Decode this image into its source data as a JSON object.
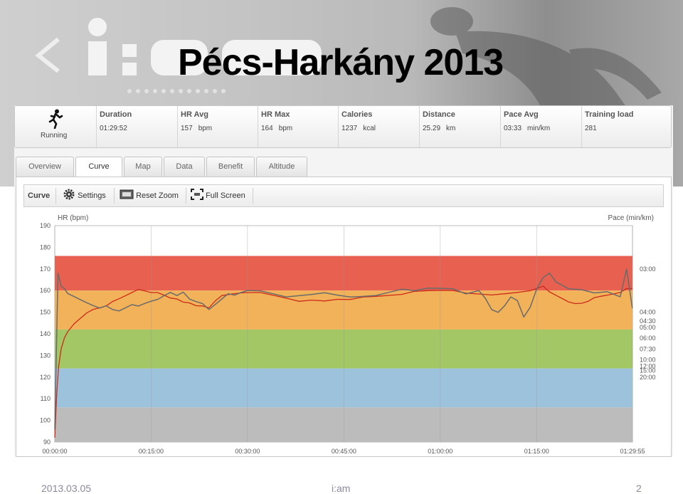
{
  "slide": {
    "title": "Pécs-Harkány 2013",
    "footer_date": "2013.03.05",
    "footer_brand": "i:am",
    "page_number": "2"
  },
  "stats": {
    "sport": "Running",
    "items": [
      {
        "label": "Duration",
        "value": "01:29:52",
        "unit": ""
      },
      {
        "label": "HR Avg",
        "value": "157",
        "unit": "bpm"
      },
      {
        "label": "HR Max",
        "value": "164",
        "unit": "bpm"
      },
      {
        "label": "Calories",
        "value": "1237",
        "unit": "kcal"
      },
      {
        "label": "Distance",
        "value": "25.29",
        "unit": "km"
      },
      {
        "label": "Pace Avg",
        "value": "03:33",
        "unit": "min/km"
      },
      {
        "label": "Training load",
        "value": "281",
        "unit": ""
      }
    ]
  },
  "tabs": [
    "Overview",
    "Curve",
    "Map",
    "Data",
    "Benefit",
    "Altitude"
  ],
  "active_tab": "Curve",
  "toolbar": {
    "curve": "Curve",
    "settings": "Settings",
    "reset_zoom": "Reset Zoom",
    "full_screen": "Full Screen"
  },
  "colors": {
    "zone_red": "#e8604f",
    "zone_orange": "#f2b25a",
    "zone_green": "#a3c764",
    "zone_blue": "#9dc3dc",
    "zone_gray": "#bcbcbc",
    "hr_line": "#cc2a1a",
    "pace_line": "#6b6b6b"
  },
  "chart_data": {
    "type": "line",
    "xlabel": "",
    "ylabel": "HR (bpm)",
    "y2label": "Pace (min/km)",
    "ylim": [
      90,
      190
    ],
    "y_ticks": [
      190,
      180,
      170,
      160,
      150,
      140,
      130,
      120,
      110,
      100,
      90
    ],
    "x_ticks": [
      "00:00:00",
      "00:15:00",
      "00:30:00",
      "00:45:00",
      "01:00:00",
      "01:15:00",
      "01:29:55"
    ],
    "x_minutes_ticks": [
      0,
      15,
      30,
      45,
      60,
      75,
      89.92
    ],
    "xlim_minutes": [
      0,
      89.92
    ],
    "pace_ticks": [
      {
        "label": "03:00",
        "hr": 170
      },
      {
        "label": "04:00",
        "hr": 150
      },
      {
        "label": "04:30",
        "hr": 146
      },
      {
        "label": "05:00",
        "hr": 143
      },
      {
        "label": "06:00",
        "hr": 138
      },
      {
        "label": "07:30",
        "hr": 133
      },
      {
        "label": "10:00",
        "hr": 128
      },
      {
        "label": "12:00",
        "hr": 125
      },
      {
        "label": "15:00",
        "hr": 123
      },
      {
        "label": "20:00",
        "hr": 120
      }
    ],
    "zones": [
      {
        "from": 160,
        "to": 176,
        "color": "#e8604f"
      },
      {
        "from": 142,
        "to": 160,
        "color": "#f2b25a"
      },
      {
        "from": 124,
        "to": 142,
        "color": "#a3c764"
      },
      {
        "from": 106,
        "to": 124,
        "color": "#9dc3dc"
      },
      {
        "from": 90,
        "to": 106,
        "color": "#bcbcbc"
      }
    ],
    "series": [
      {
        "name": "HR (bpm)",
        "x": [
          0,
          0.3,
          0.6,
          1,
          1.5,
          2,
          3,
          4,
          5,
          6,
          7,
          8,
          9,
          10,
          11,
          12,
          13,
          14,
          15,
          16,
          17,
          18,
          19,
          20,
          21,
          22,
          23,
          24,
          25,
          26,
          27,
          28,
          29,
          30,
          32,
          34,
          36,
          38,
          40,
          42,
          44,
          46,
          48,
          50,
          52,
          54,
          56,
          58,
          60,
          62,
          64,
          66,
          68,
          70,
          72,
          74,
          75,
          76,
          77,
          78,
          79,
          80,
          81,
          82,
          83,
          84,
          85,
          86,
          87,
          88,
          89,
          89.9
        ],
        "values": [
          92,
          112,
          125,
          132,
          137,
          140,
          144,
          147,
          150,
          152,
          153,
          154,
          156,
          157,
          158,
          159,
          160,
          159,
          158,
          158,
          157,
          156,
          156,
          155,
          155,
          154,
          154,
          153,
          156,
          158,
          158,
          158,
          158,
          158,
          158,
          157,
          156,
          155,
          156,
          156,
          157,
          157,
          158,
          158,
          158,
          158,
          159,
          159,
          159,
          159,
          158,
          158,
          158,
          159,
          160,
          161,
          162,
          163,
          160,
          158,
          156,
          154,
          153,
          153,
          154,
          156,
          157,
          158,
          159,
          160,
          162,
          162
        ]
      },
      {
        "name": "Pace (min/km)",
        "x": [
          0,
          0.5,
          1,
          1.5,
          2,
          3,
          4,
          5,
          6,
          7,
          8,
          9,
          10,
          11,
          12,
          13,
          14,
          15,
          16,
          17,
          18,
          19,
          20,
          21,
          22,
          23,
          24,
          25,
          26,
          27,
          28,
          29,
          30,
          32,
          34,
          36,
          38,
          40,
          42,
          44,
          46,
          48,
          50,
          52,
          54,
          56,
          58,
          60,
          62,
          64,
          66,
          67,
          68,
          69,
          70,
          71,
          72,
          73,
          74,
          75,
          76,
          77,
          78,
          80,
          82,
          84,
          86,
          88,
          89,
          89.9
        ],
        "values": [
          96,
          168,
          162,
          160,
          158,
          157,
          156,
          155,
          154,
          153,
          154,
          152,
          151,
          152,
          153,
          152,
          153,
          154,
          155,
          157,
          159,
          158,
          160,
          157,
          156,
          155,
          152,
          154,
          156,
          158,
          157,
          158,
          159,
          159,
          158,
          157,
          158,
          159,
          160,
          159,
          158,
          158,
          158,
          159,
          160,
          159,
          160,
          160,
          160,
          158,
          160,
          157,
          152,
          151,
          154,
          158,
          156,
          148,
          152,
          160,
          165,
          167,
          163,
          160,
          160,
          159,
          160,
          158,
          171,
          153
        ]
      }
    ]
  }
}
